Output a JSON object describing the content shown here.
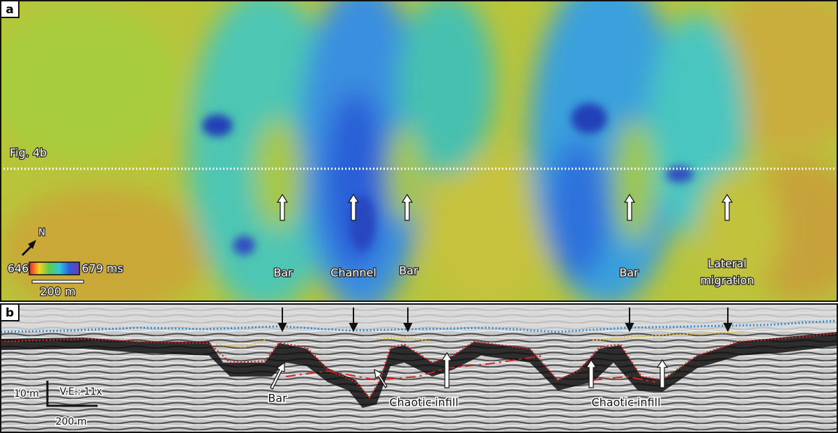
{
  "panel_a": {
    "label": "a",
    "profile_label": "Fig. 4b",
    "north": "N",
    "colorbar": {
      "min_label": "646",
      "max_label": "679 ms"
    },
    "scale_bar": "200 m",
    "annotations": [
      "Bar",
      "Channel",
      "Bar",
      "Bar"
    ],
    "migration_label": [
      "Lateral",
      "migration"
    ]
  },
  "panel_b": {
    "label": "b",
    "annotations": [
      "Bar",
      "Chaotic infill",
      "Chaotic infill"
    ],
    "vertical_scale": "10 m",
    "vertical_exaggeration": "V.E.: 11x",
    "horizontal_scale": "200 m"
  }
}
